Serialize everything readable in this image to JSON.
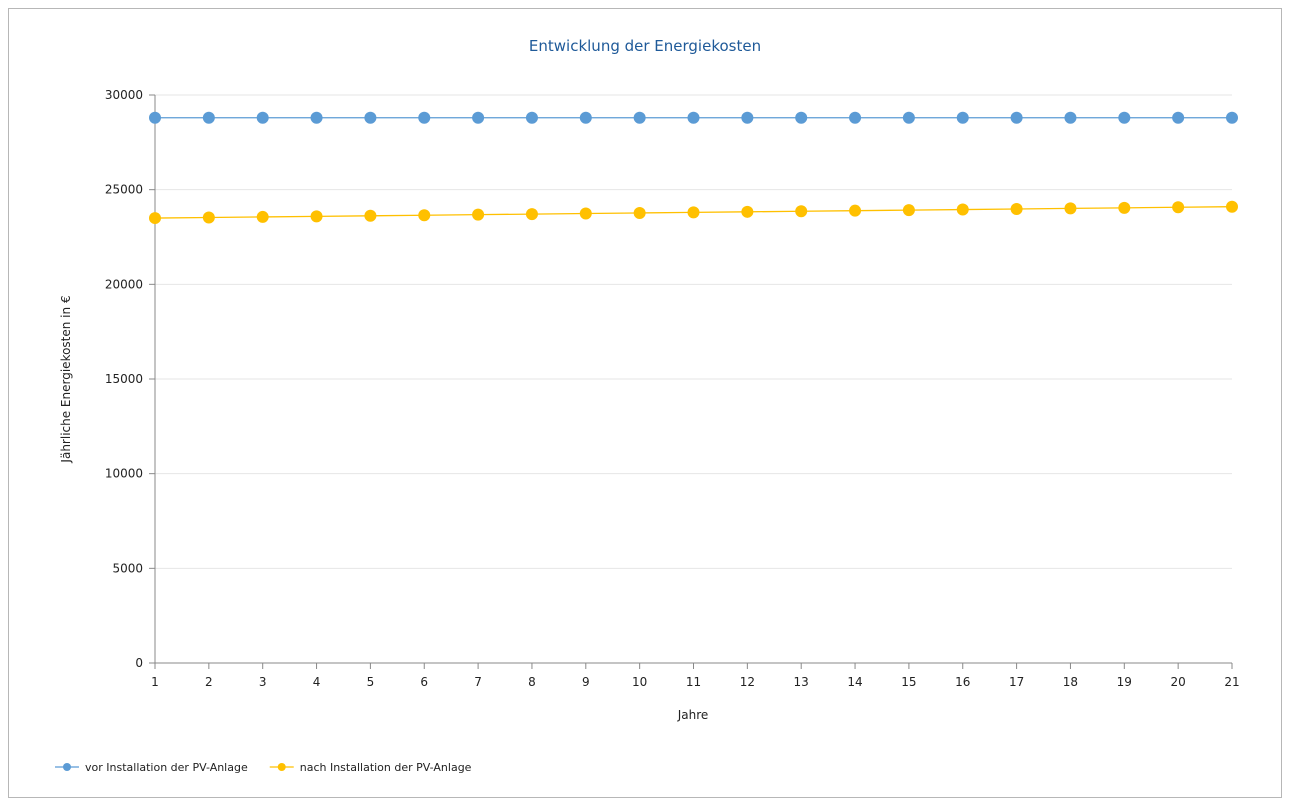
{
  "chart_data": {
    "type": "line",
    "title": "Entwicklung der Energiekosten",
    "xlabel": "Jahre",
    "ylabel": "Jährliche Energiekosten in €",
    "ylim": [
      0,
      30000
    ],
    "yticks": [
      0,
      5000,
      10000,
      15000,
      20000,
      25000,
      30000
    ],
    "x": [
      1,
      2,
      3,
      4,
      5,
      6,
      7,
      8,
      9,
      10,
      11,
      12,
      13,
      14,
      15,
      16,
      17,
      18,
      19,
      20,
      21
    ],
    "grid": true,
    "legend_position": "bottom-left",
    "series": [
      {
        "name": "vor Installation der PV-Anlage",
        "color": "#5b9bd5",
        "values": [
          28800,
          28800,
          28800,
          28800,
          28800,
          28800,
          28800,
          28800,
          28800,
          28800,
          28800,
          28800,
          28800,
          28800,
          28800,
          28800,
          28800,
          28800,
          28800,
          28800,
          28800
        ]
      },
      {
        "name": "nach Installation der PV-Anlage",
        "color": "#ffc000",
        "values": [
          23500,
          23530,
          23560,
          23590,
          23620,
          23650,
          23680,
          23710,
          23740,
          23770,
          23800,
          23830,
          23860,
          23890,
          23920,
          23950,
          23980,
          24010,
          24040,
          24070,
          24100
        ]
      }
    ]
  }
}
